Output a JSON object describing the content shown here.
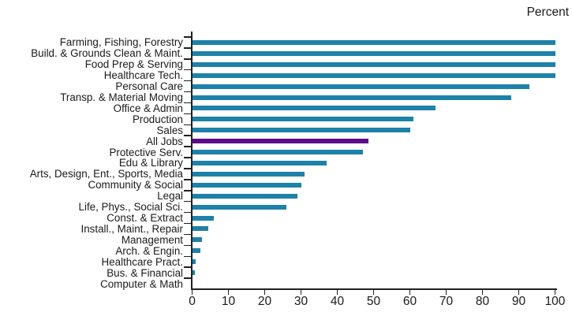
{
  "chart_data": {
    "type": "bar",
    "orientation": "horizontal",
    "title": "",
    "unit_label": "Percent",
    "xlabel": "Percent",
    "ylabel": "",
    "xlim": [
      0,
      100
    ],
    "x_ticks": [
      "0",
      "10",
      "20",
      "30",
      "40",
      "50",
      "60",
      "70",
      "80",
      "90",
      "100"
    ],
    "x_tick_values": [
      0,
      10,
      20,
      30,
      40,
      50,
      60,
      70,
      80,
      90,
      100
    ],
    "grid": false,
    "legend": "none",
    "categories": [
      "Farming, Fishing, Forestry",
      "Build. & Grounds Clean & Maint.",
      "Food Prep & Serving",
      "Healthcare Tech.",
      "Personal Care",
      "Transp. & Material Moving",
      "Office & Admin",
      "Production",
      "Sales",
      "All Jobs",
      "Protective Serv.",
      "Edu & Library",
      "Arts, Design, Ent., Sports, Media",
      "Community & Social",
      "Legal",
      "Life, Phys., Social Sci.",
      "Const. & Extract",
      "Install., Maint., Repair",
      "Management",
      "Arch. & Engin.",
      "Healthcare Pract.",
      "Bus. & Financial",
      "Computer & Math"
    ],
    "values": [
      100,
      100,
      100,
      100,
      93,
      88,
      67,
      61,
      60,
      48.5,
      47,
      37,
      31,
      30,
      29,
      26,
      6,
      4.5,
      2.7,
      2.2,
      1,
      0.7,
      0
    ],
    "highlight_category": "All Jobs",
    "highlight_index": 9,
    "bar_color": "#1E81A8",
    "highlight_color": "#5C0C8A",
    "axis_color": "#212121",
    "text_color": "#1A1A1A"
  }
}
